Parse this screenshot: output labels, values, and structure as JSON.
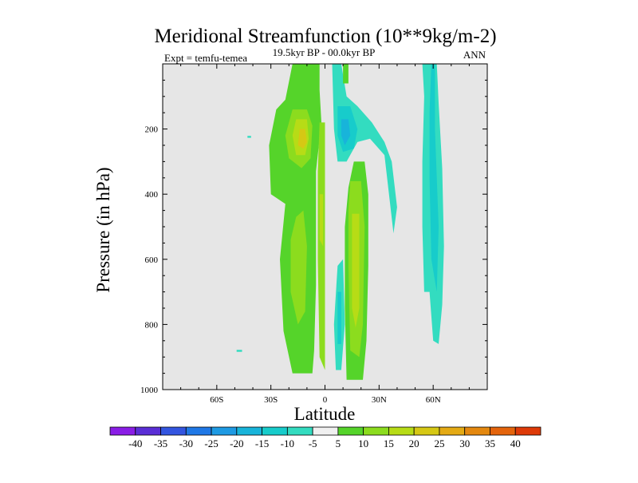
{
  "chart_data": {
    "type": "heatmap",
    "title": "Meridional Streamfunction (10**9kg/m-2)",
    "subtitle": "19.5kyr BP - 00.0kyr BP",
    "left_label": "Expt = temfu-temea",
    "right_label": "ANN",
    "xlabel": "Latitude",
    "ylabel": "Pressure (in hPa)",
    "xlim": [
      -90,
      90
    ],
    "ylim": [
      1000,
      0
    ],
    "x_ticks": [
      {
        "value": -60,
        "label": "60S"
      },
      {
        "value": -30,
        "label": "30S"
      },
      {
        "value": 0,
        "label": "0"
      },
      {
        "value": 30,
        "label": "30N"
      },
      {
        "value": 60,
        "label": "60N"
      }
    ],
    "y_ticks": [
      {
        "value": 200,
        "label": "200"
      },
      {
        "value": 400,
        "label": "400"
      },
      {
        "value": 600,
        "label": "600"
      },
      {
        "value": 800,
        "label": "800"
      },
      {
        "value": 1000,
        "label": "1000"
      }
    ],
    "missing_color": "#e6e6e6",
    "colorbar": {
      "labels": [
        "-40",
        "-35",
        "-30",
        "-25",
        "-20",
        "-15",
        "-10",
        "-5",
        "5",
        "10",
        "15",
        "20",
        "25",
        "30",
        "35",
        "40"
      ],
      "colors": [
        "#8a1de6",
        "#5a2ed6",
        "#3355e0",
        "#1f78e6",
        "#1e9ae3",
        "#18b4da",
        "#17cccb",
        "#33dcc0",
        "#f0f0f0",
        "#55d42a",
        "#8cdc1e",
        "#b7dc16",
        "#d6c814",
        "#e4aa14",
        "#e4880f",
        "#e4640c",
        "#de3a08"
      ]
    },
    "regions": [
      {
        "name": "sh-cell-outer",
        "level": 5,
        "color": "#55d42a",
        "points": [
          [
            -18,
            0
          ],
          [
            -3,
            0
          ],
          [
            -3,
            80
          ],
          [
            -2,
            180
          ],
          [
            -5,
            330
          ],
          [
            -5,
            680
          ],
          [
            -6,
            880
          ],
          [
            -7,
            950
          ],
          [
            -18,
            950
          ],
          [
            -23,
            820
          ],
          [
            -25,
            600
          ],
          [
            -22,
            430
          ],
          [
            -30,
            400
          ],
          [
            -31,
            250
          ],
          [
            -27,
            140
          ],
          [
            -22,
            110
          ]
        ]
      },
      {
        "name": "sh-cell-mid-low",
        "level": 10,
        "color": "#8cdc1e",
        "points": [
          [
            -16,
            470
          ],
          [
            -12,
            450
          ],
          [
            -10,
            560
          ],
          [
            -11,
            760
          ],
          [
            -15,
            800
          ],
          [
            -19,
            700
          ],
          [
            -19,
            540
          ]
        ]
      },
      {
        "name": "sh-cell-mid-up",
        "level": 10,
        "color": "#8cdc1e",
        "points": [
          [
            -18,
            140
          ],
          [
            -10,
            140
          ],
          [
            -7,
            190
          ],
          [
            -8,
            290
          ],
          [
            -13,
            320
          ],
          [
            -20,
            290
          ],
          [
            -22,
            220
          ]
        ]
      },
      {
        "name": "sh-cell-core",
        "level": 15,
        "color": "#b7dc16",
        "points": [
          [
            -16,
            170
          ],
          [
            -10,
            170
          ],
          [
            -9,
            230
          ],
          [
            -11,
            280
          ],
          [
            -16,
            280
          ],
          [
            -18,
            220
          ]
        ]
      },
      {
        "name": "sh-cell-peak",
        "level": 20,
        "color": "#d6c814",
        "points": [
          [
            -14,
            200
          ],
          [
            -11,
            200
          ],
          [
            -10,
            240
          ],
          [
            -12,
            260
          ],
          [
            -15,
            250
          ]
        ]
      },
      {
        "name": "eq-band",
        "level": 10,
        "color": "#8cdc1e",
        "points": [
          [
            -3,
            180
          ],
          [
            0,
            180
          ],
          [
            0,
            940
          ],
          [
            -3,
            900
          ],
          [
            -4,
            600
          ],
          [
            -4,
            330
          ]
        ]
      },
      {
        "name": "eq-band-core",
        "level": 15,
        "color": "#b7dc16",
        "points": [
          [
            -3,
            400
          ],
          [
            -1,
            400
          ],
          [
            -1,
            560
          ],
          [
            -3,
            540
          ]
        ]
      },
      {
        "name": "nh-neg-outer",
        "level": -5,
        "color": "#33dcc0",
        "points": [
          [
            4,
            0
          ],
          [
            9,
            0
          ],
          [
            12,
            100
          ],
          [
            18,
            130
          ],
          [
            26,
            180
          ],
          [
            33,
            240
          ],
          [
            37,
            300
          ],
          [
            40,
            440
          ],
          [
            38,
            520
          ],
          [
            33,
            280
          ],
          [
            25,
            230
          ],
          [
            18,
            240
          ],
          [
            12,
            300
          ],
          [
            7,
            300
          ],
          [
            5,
            200
          ]
        ]
      },
      {
        "name": "nh-neg-lower",
        "level": -5,
        "color": "#33dcc0",
        "points": [
          [
            7,
            620
          ],
          [
            10,
            600
          ],
          [
            11,
            800
          ],
          [
            9,
            940
          ],
          [
            6,
            940
          ],
          [
            5,
            800
          ]
        ]
      },
      {
        "name": "nh-neg-mid",
        "level": -10,
        "color": "#17cccb",
        "points": [
          [
            7,
            130
          ],
          [
            14,
            130
          ],
          [
            18,
            200
          ],
          [
            16,
            260
          ],
          [
            10,
            270
          ],
          [
            7,
            220
          ]
        ]
      },
      {
        "name": "nh-neg-core",
        "level": -15,
        "color": "#18b4da",
        "points": [
          [
            9,
            170
          ],
          [
            13,
            170
          ],
          [
            14,
            220
          ],
          [
            11,
            250
          ],
          [
            9,
            220
          ]
        ]
      },
      {
        "name": "nh-neg-lower-core",
        "level": -10,
        "color": "#17cccb",
        "points": [
          [
            7,
            700
          ],
          [
            9,
            700
          ],
          [
            9,
            860
          ],
          [
            7,
            860
          ]
        ]
      },
      {
        "name": "nh-pos-outer",
        "level": 5,
        "color": "#55d42a",
        "points": [
          [
            16,
            300
          ],
          [
            22,
            300
          ],
          [
            24,
            400
          ],
          [
            24,
            620
          ],
          [
            23,
            850
          ],
          [
            21,
            970
          ],
          [
            12,
            970
          ],
          [
            11,
            750
          ],
          [
            11,
            500
          ],
          [
            13,
            380
          ]
        ]
      },
      {
        "name": "nh-pos-mid",
        "level": 10,
        "color": "#8cdc1e",
        "points": [
          [
            14,
            360
          ],
          [
            20,
            360
          ],
          [
            22,
            500
          ],
          [
            21,
            800
          ],
          [
            19,
            900
          ],
          [
            14,
            880
          ],
          [
            13,
            620
          ],
          [
            13,
            450
          ]
        ]
      },
      {
        "name": "nh-pos-core",
        "level": 15,
        "color": "#b7dc16",
        "points": [
          [
            15,
            460
          ],
          [
            19,
            460
          ],
          [
            19,
            750
          ],
          [
            17,
            810
          ],
          [
            15,
            750
          ]
        ]
      },
      {
        "name": "nh-pos-upper",
        "level": 5,
        "color": "#55d42a",
        "points": [
          [
            10,
            0
          ],
          [
            13,
            0
          ],
          [
            13,
            60
          ],
          [
            10,
            60
          ]
        ]
      },
      {
        "name": "polar-neg-outer",
        "level": -5,
        "color": "#33dcc0",
        "points": [
          [
            54,
            0
          ],
          [
            62,
            0
          ],
          [
            63,
            120
          ],
          [
            65,
            320
          ],
          [
            66,
            560
          ],
          [
            65,
            740
          ],
          [
            63,
            860
          ],
          [
            60,
            850
          ],
          [
            58,
            700
          ],
          [
            55,
            700
          ],
          [
            54,
            500
          ],
          [
            54,
            300
          ],
          [
            55,
            100
          ]
        ]
      },
      {
        "name": "polar-neg-core",
        "level": -10,
        "color": "#17cccb",
        "points": [
          [
            59,
            0
          ],
          [
            61,
            0
          ],
          [
            61,
            200
          ],
          [
            63,
            500
          ],
          [
            62,
            700
          ],
          [
            59,
            600
          ],
          [
            58,
            350
          ],
          [
            58,
            150
          ]
        ]
      },
      {
        "name": "dot-sh",
        "level": -5,
        "color": "#33dcc0",
        "points": [
          [
            -43,
            221
          ],
          [
            -41,
            221
          ],
          [
            -41,
            227
          ],
          [
            -43,
            227
          ]
        ]
      },
      {
        "name": "dot-sh-low",
        "level": -5,
        "color": "#33dcc0",
        "points": [
          [
            -49,
            878
          ],
          [
            -46,
            878
          ],
          [
            -46,
            884
          ],
          [
            -49,
            884
          ]
        ]
      }
    ]
  }
}
